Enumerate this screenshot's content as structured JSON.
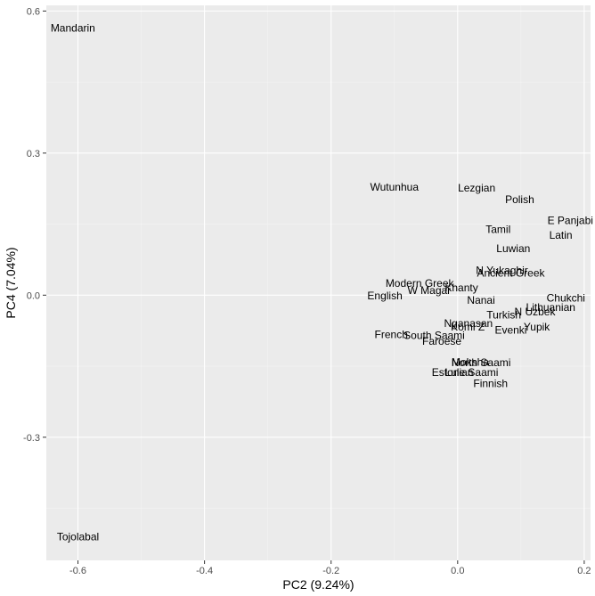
{
  "chart_data": {
    "type": "scatter",
    "xlabel": "PC2 (9.24%)",
    "ylabel": "PC4 (7.04%)",
    "xlim": [
      -0.65,
      0.21
    ],
    "ylim": [
      -0.56,
      0.612
    ],
    "x_ticks": [
      -0.6,
      -0.4,
      -0.2,
      0.0,
      0.2
    ],
    "x_tick_labels": [
      "-0.6",
      "-0.4",
      "-0.2",
      "0.0",
      "0.2"
    ],
    "y_ticks": [
      -0.3,
      0.0,
      0.3,
      0.6
    ],
    "y_tick_labels": [
      "-0.3",
      "0.0",
      "0.3",
      "0.6"
    ],
    "grid": true,
    "points": [
      {
        "label": "Mandarin",
        "x": -0.608,
        "y": 0.564
      },
      {
        "label": "Tojolabal",
        "x": -0.6,
        "y": -0.51
      },
      {
        "label": "Wutunhua",
        "x": -0.1,
        "y": 0.228
      },
      {
        "label": "Lezgian",
        "x": 0.03,
        "y": 0.226
      },
      {
        "label": "Polish",
        "x": 0.098,
        "y": 0.202
      },
      {
        "label": "E Panjabi",
        "x": 0.178,
        "y": 0.158
      },
      {
        "label": "Latin",
        "x": 0.163,
        "y": 0.127
      },
      {
        "label": "Tamil",
        "x": 0.064,
        "y": 0.139
      },
      {
        "label": "Luwian",
        "x": 0.088,
        "y": 0.098
      },
      {
        "label": "N Yukaghir",
        "x": 0.07,
        "y": 0.052
      },
      {
        "label": "Ancient Greek",
        "x": 0.084,
        "y": 0.047
      },
      {
        "label": "Modern Greek",
        "x": -0.06,
        "y": 0.025
      },
      {
        "label": "Khanty",
        "x": 0.006,
        "y": 0.016
      },
      {
        "label": "W Magar",
        "x": -0.045,
        "y": 0.01
      },
      {
        "label": "English",
        "x": -0.115,
        "y": -0.001
      },
      {
        "label": "Nanai",
        "x": 0.037,
        "y": -0.011
      },
      {
        "label": "Chukchi",
        "x": 0.171,
        "y": -0.006
      },
      {
        "label": "Lithuanian",
        "x": 0.147,
        "y": -0.026
      },
      {
        "label": "N Uzbek",
        "x": 0.122,
        "y": -0.035
      },
      {
        "label": "Turkish",
        "x": 0.073,
        "y": -0.042
      },
      {
        "label": "Nganasan",
        "x": 0.017,
        "y": -0.06
      },
      {
        "label": "Komi Z",
        "x": 0.016,
        "y": -0.067
      },
      {
        "label": "Evenki",
        "x": 0.084,
        "y": -0.074
      },
      {
        "label": "Yupik",
        "x": 0.125,
        "y": -0.067
      },
      {
        "label": "French",
        "x": -0.105,
        "y": -0.083
      },
      {
        "label": "South Saami",
        "x": -0.037,
        "y": -0.085
      },
      {
        "label": "Faroese",
        "x": -0.025,
        "y": -0.097
      },
      {
        "label": "Moksha",
        "x": 0.02,
        "y": -0.141
      },
      {
        "label": "North Saami",
        "x": 0.037,
        "y": -0.142
      },
      {
        "label": "Estonian",
        "x": -0.008,
        "y": -0.163
      },
      {
        "label": "Lule Saami",
        "x": 0.022,
        "y": -0.163
      },
      {
        "label": "Finnish",
        "x": 0.052,
        "y": -0.187
      }
    ]
  }
}
